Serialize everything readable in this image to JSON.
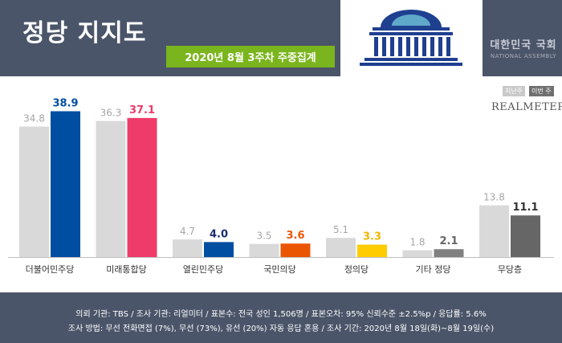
{
  "header": {
    "title": "정당 지지도",
    "subtitle": "2020년 8월 3주차 주중집계",
    "assembly_kr": "대한민국 국회",
    "assembly_en": "NATIONAL ASSEMBLY"
  },
  "legend": {
    "prev": "지난주",
    "curr": "이번 주"
  },
  "brand": "REALMETER",
  "colors": {
    "prev_bar": "#d9d9d9",
    "other_curr": "#808080",
    "header_bg": "#4b5569",
    "subtitle_bg": "#7ab51d"
  },
  "chart_data": {
    "type": "bar",
    "categories": [
      "더불어민주당",
      "미래통합당",
      "열린민주당",
      "국민의당",
      "정의당",
      "기타 정당",
      "무당층"
    ],
    "series": [
      {
        "name": "지난주",
        "values": [
          34.8,
          36.3,
          4.7,
          3.5,
          5.1,
          1.8,
          13.8
        ]
      },
      {
        "name": "이번 주",
        "values": [
          38.9,
          37.1,
          4.0,
          3.6,
          3.3,
          2.1,
          11.1
        ]
      }
    ],
    "current_colors": [
      "#004ea2",
      "#ee3b6a",
      "#004ea2",
      "#ea5504",
      "#ffcc00",
      "#808080",
      "#666666"
    ],
    "current_label_colors": [
      "#004ea2",
      "#ee3b6a",
      "#1a2d6d",
      "#ea5504",
      "#f2b600",
      "#666666",
      "#333333"
    ],
    "ylim": [
      0,
      45
    ]
  },
  "footer": {
    "line1": "의뢰 기관: TBS / 조사 기관: 리얼미터 / 표본수: 전국 성인 1,506명 / 표본오차: 95% 신뢰수준 ±2.5%p / 응답률: 5.6%",
    "line2": "조사 방법: 무선 전화면접 (7%), 무선 (73%), 유선 (20%) 자동 응답 혼용 / 조사 기간: 2020년 8월 18일(화)~8월 19일(수)"
  }
}
